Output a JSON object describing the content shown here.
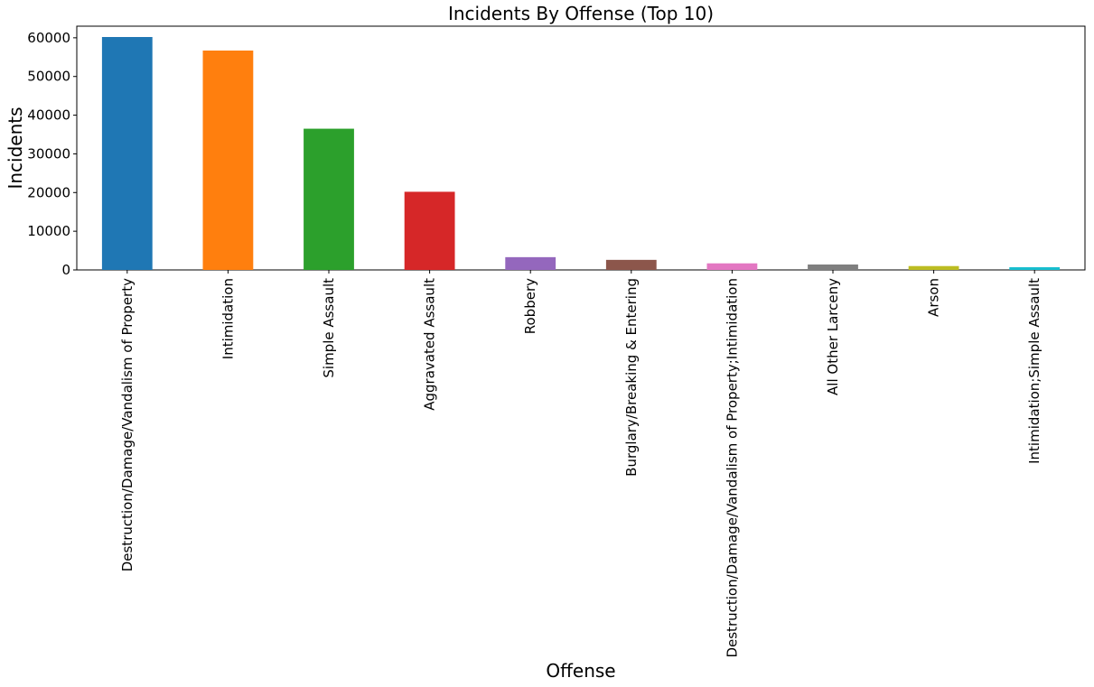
{
  "chart_data": {
    "type": "bar",
    "title": "Incidents By Offense (Top 10)",
    "xlabel": "Offense",
    "ylabel": "Incidents",
    "ylim": [
      0,
      63000
    ],
    "yticks": [
      0,
      10000,
      20000,
      30000,
      40000,
      50000,
      60000
    ],
    "grid": false,
    "legend": "none",
    "categories": [
      "Destruction/Damage/Vandalism of Property",
      "Intimidation",
      "Simple Assault",
      "Aggravated Assault",
      "Robbery",
      "Burglary/Breaking & Entering",
      "Destruction/Damage/Vandalism of Property;Intimidation",
      "All Other Larceny",
      "Arson",
      "Intimidation;Simple Assault"
    ],
    "values": [
      60200,
      56700,
      36500,
      20200,
      3300,
      2600,
      1700,
      1400,
      1000,
      700
    ],
    "colors": [
      "#1f77b4",
      "#ff7f0e",
      "#2ca02c",
      "#d62728",
      "#9467bd",
      "#8c564b",
      "#e377c2",
      "#7f7f7f",
      "#bcbd22",
      "#17becf"
    ]
  }
}
